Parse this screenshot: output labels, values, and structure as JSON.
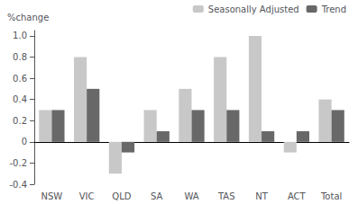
{
  "chart_data": {
    "type": "bar",
    "y_label": "%change",
    "categories": [
      "NSW",
      "VIC",
      "QLD",
      "SA",
      "WA",
      "TAS",
      "NT",
      "ACT",
      "Total"
    ],
    "series": [
      {
        "name": "Seasonally Adjusted",
        "color": "#c8c8c8",
        "values": [
          0.3,
          0.8,
          -0.3,
          0.3,
          0.5,
          0.8,
          1.0,
          -0.1,
          0.4
        ]
      },
      {
        "name": "Trend",
        "color": "#686868",
        "values": [
          0.3,
          0.5,
          -0.1,
          0.1,
          0.3,
          0.3,
          0.1,
          0.1,
          0.3
        ]
      }
    ],
    "ylim": [
      -0.4,
      1.05
    ],
    "yticks": [
      -0.4,
      -0.2,
      0,
      0.2,
      0.4,
      0.6,
      0.8,
      {
        "value": 1.0,
        "label": "1.0"
      }
    ],
    "grid": false,
    "legend": "upper right"
  }
}
